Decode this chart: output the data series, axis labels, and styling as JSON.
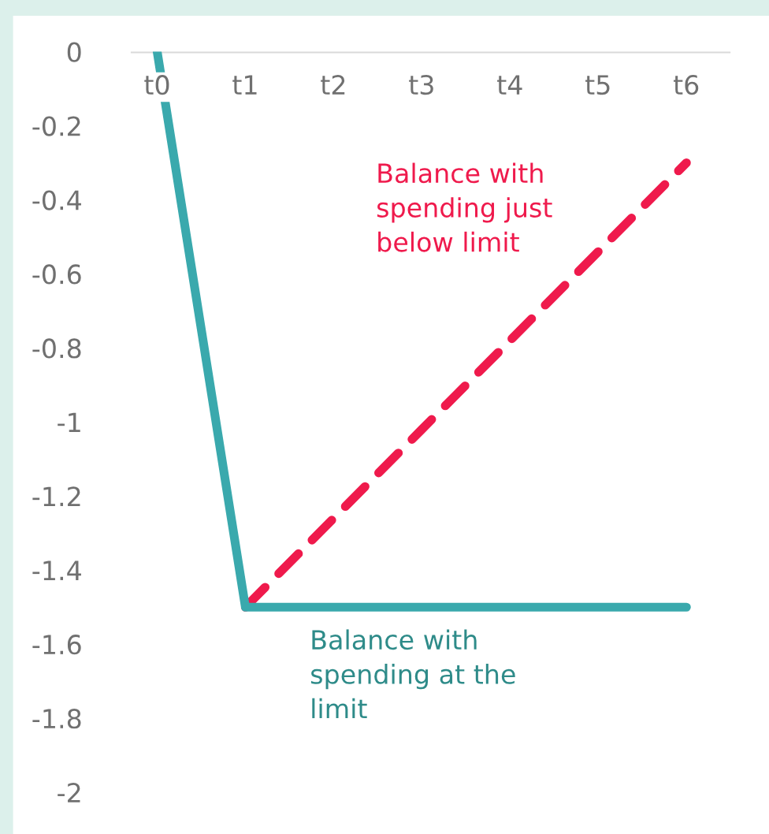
{
  "chart_data": {
    "type": "line",
    "categories": [
      "t0",
      "t1",
      "t2",
      "t3",
      "t4",
      "t5",
      "t6"
    ],
    "series": [
      {
        "name": "Balance with spending at the limit",
        "color": "#3aa9ad",
        "values": [
          0,
          -1.5,
          -1.5,
          -1.5,
          -1.5,
          -1.5,
          -1.5
        ],
        "line_style": "solid"
      },
      {
        "name": "Balance with spending just below limit",
        "color": "#ef1a4c",
        "values": [
          null,
          -1.5,
          -1.26,
          -1.02,
          -0.78,
          -0.54,
          -0.3
        ],
        "line_style": "dashed"
      }
    ],
    "ylim": [
      -2,
      0
    ],
    "yticks": [
      0,
      -0.2,
      -0.4,
      -0.6,
      -0.8,
      -1,
      -1.2,
      -1.4,
      -1.6,
      -1.8,
      -2
    ],
    "grid": false,
    "legend": false,
    "marker": "none"
  }
}
